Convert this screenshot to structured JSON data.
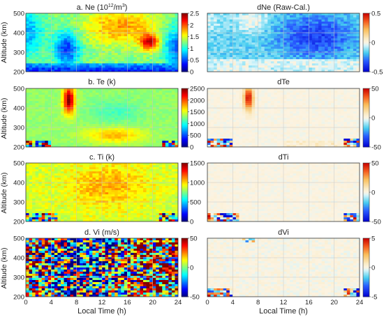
{
  "figure": {
    "xlabel": "Local Time (h)",
    "ylabel": "Altitude (km)"
  },
  "chart_data": [
    {
      "type": "heatmap",
      "id": "ne",
      "title": "a. Ne",
      "title_main": "a. Ne (10",
      "title_sup": "12",
      "title_mid": "/m",
      "title_sup2": "3",
      "title_end": ")",
      "xlim": [
        0,
        24
      ],
      "ylim": [
        200,
        500
      ],
      "xticks": [
        "0",
        "4",
        "8",
        "12",
        "16",
        "20",
        "24"
      ],
      "yticks": [
        "200",
        "300",
        "400",
        "500"
      ],
      "clim": [
        0,
        2.5
      ],
      "cticks": [
        "0",
        "0.5",
        "1",
        "1.5",
        "2",
        "2.5"
      ],
      "colormap": "jet",
      "features": "high ~1.5-2.3 above 350 km in daytime, ~2.3 peak near 19-20 h at 350 km, low ~0.3 below 250 km, nighttime minimum ~0.5"
    },
    {
      "type": "heatmap",
      "id": "dne",
      "title": "dNe (Raw-Cal.)",
      "xlim": [
        0,
        24
      ],
      "ylim": [
        200,
        500
      ],
      "clim": [
        -0.5,
        0.5
      ],
      "cticks": [
        "-0.5",
        "0",
        "0.5"
      ],
      "colormap": "diverging",
      "features": "mostly 0 to -0.4; strongest negative (~-0.45) in daytime 12-22 h above 300 km"
    },
    {
      "type": "heatmap",
      "id": "te",
      "title": "b. Te (k)",
      "xlim": [
        0,
        24
      ],
      "ylim": [
        200,
        500
      ],
      "xticks": [
        "0",
        "4",
        "8",
        "12",
        "16",
        "20",
        "24"
      ],
      "yticks": [
        "200",
        "300",
        "400",
        "500"
      ],
      "clim": [
        0,
        2500
      ],
      "cticks": [
        "0",
        "500",
        "1000",
        "1500",
        "2000",
        "2500"
      ],
      "colormap": "jet",
      "features": "~1300 background, sunrise peak ~2500 near 6-7 h above 350 km, ~1800 plateau 9-20 h near 250 km"
    },
    {
      "type": "heatmap",
      "id": "dte",
      "title": "dTe",
      "xlim": [
        0,
        24
      ],
      "ylim": [
        200,
        500
      ],
      "clim": [
        -50,
        50
      ],
      "cticks": [
        "-50",
        "0",
        "50"
      ],
      "colormap": "diverging",
      "features": "near 0 everywhere; ~+50 near 6-7 h above 380 km; mixed ±50 near 200-240 km at 0-4 h and 22-24 h"
    },
    {
      "type": "heatmap",
      "id": "ti",
      "title": "c. Ti (k)",
      "xlim": [
        0,
        24
      ],
      "ylim": [
        200,
        500
      ],
      "xticks": [
        "0",
        "4",
        "8",
        "12",
        "16",
        "20",
        "24"
      ],
      "yticks": [
        "200",
        "300",
        "400",
        "500"
      ],
      "clim": [
        0,
        1500
      ],
      "cticks": [
        "0",
        "500",
        "1000",
        "1500"
      ],
      "colormap": "jet",
      "features": "~800-1000 overall, slightly higher ~1000-1100 in daytime, noisy near 200-230 km"
    },
    {
      "type": "heatmap",
      "id": "dti",
      "title": "dTi",
      "xlim": [
        0,
        24
      ],
      "ylim": [
        200,
        500
      ],
      "clim": [
        -50,
        50
      ],
      "cticks": [
        "-50",
        "0",
        "50"
      ],
      "colormap": "diverging",
      "features": "near 0 everywhere; mixed ±50 near 200-240 km at 0-5 h and 22-24 h"
    },
    {
      "type": "heatmap",
      "id": "vi",
      "title": "d. Vi (m/s)",
      "xlim": [
        0,
        24
      ],
      "ylim": [
        200,
        500
      ],
      "xticks": [
        "0",
        "4",
        "8",
        "12",
        "16",
        "20",
        "24"
      ],
      "yticks": [
        "200",
        "300",
        "400",
        "500"
      ],
      "clim": [
        -50,
        50
      ],
      "cticks": [
        "-50",
        "0",
        "50"
      ],
      "colormap": "jet",
      "features": "noisy ±50 pattern, positive at night and early morning, negative afternoon"
    },
    {
      "type": "heatmap",
      "id": "dvi",
      "title": "dVi",
      "xlim": [
        0,
        24
      ],
      "ylim": [
        200,
        500
      ],
      "clim": [
        -5,
        5
      ],
      "cticks": [
        "-5",
        "0",
        "5"
      ],
      "colormap": "diverging",
      "features": "near 0; ±5 near 200-240 km at 0-5 h and 22-24 h"
    }
  ]
}
